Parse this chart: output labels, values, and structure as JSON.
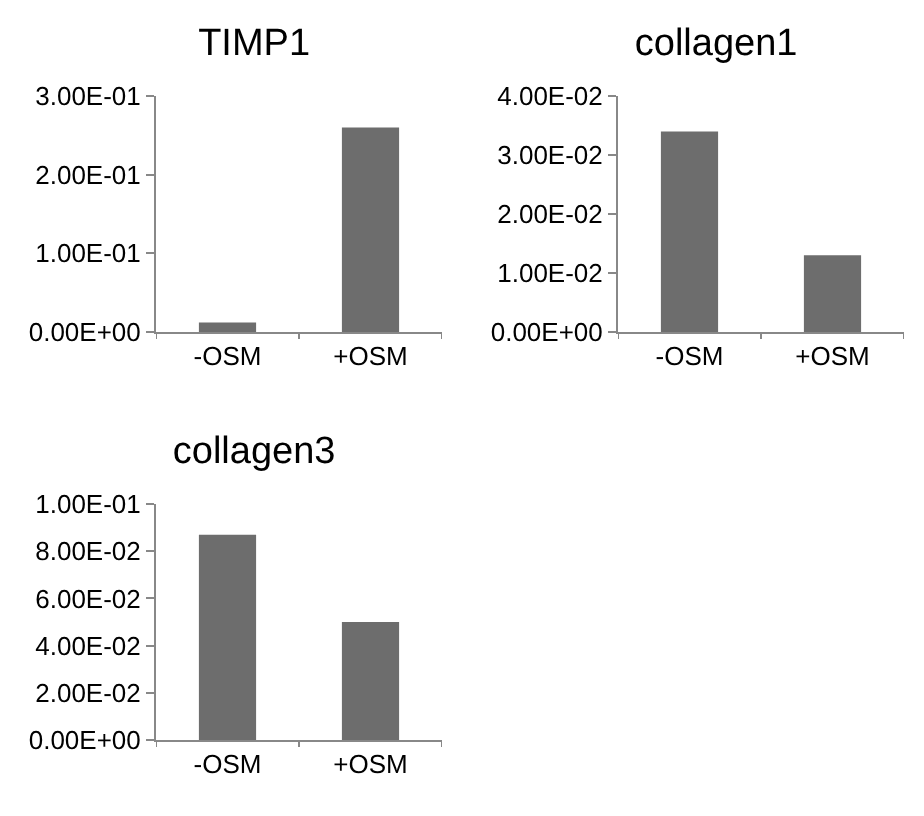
{
  "chart_data": [
    {
      "type": "bar",
      "title": "TIMP1",
      "categories": [
        "-OSM",
        "+OSM"
      ],
      "values": [
        0.012,
        0.26
      ],
      "color": "#6d6d6d",
      "ylim": [
        0,
        0.3
      ],
      "yticks": [
        {
          "value": 0,
          "label": "0.00E+00"
        },
        {
          "value": 0.1,
          "label": "1.00E-01"
        },
        {
          "value": 0.2,
          "label": "2.00E-01"
        },
        {
          "value": 0.3,
          "label": "3.00E-01"
        }
      ]
    },
    {
      "type": "bar",
      "title": "collagen1",
      "categories": [
        "-OSM",
        "+OSM"
      ],
      "values": [
        0.034,
        0.013
      ],
      "color": "#6d6d6d",
      "ylim": [
        0,
        0.04
      ],
      "yticks": [
        {
          "value": 0,
          "label": "0.00E+00"
        },
        {
          "value": 0.01,
          "label": "1.00E-02"
        },
        {
          "value": 0.02,
          "label": "2.00E-02"
        },
        {
          "value": 0.03,
          "label": "3.00E-02"
        },
        {
          "value": 0.04,
          "label": "4.00E-02"
        }
      ]
    },
    {
      "type": "bar",
      "title": "collagen3",
      "categories": [
        "-OSM",
        "+OSM"
      ],
      "values": [
        0.087,
        0.05
      ],
      "color": "#6d6d6d",
      "ylim": [
        0,
        0.1
      ],
      "yticks": [
        {
          "value": 0,
          "label": "0.00E+00"
        },
        {
          "value": 0.02,
          "label": "2.00E-02"
        },
        {
          "value": 0.04,
          "label": "4.00E-02"
        },
        {
          "value": 0.06,
          "label": "6.00E-02"
        },
        {
          "value": 0.08,
          "label": "8.00E-02"
        },
        {
          "value": 0.1,
          "label": "1.00E-01"
        }
      ]
    }
  ]
}
